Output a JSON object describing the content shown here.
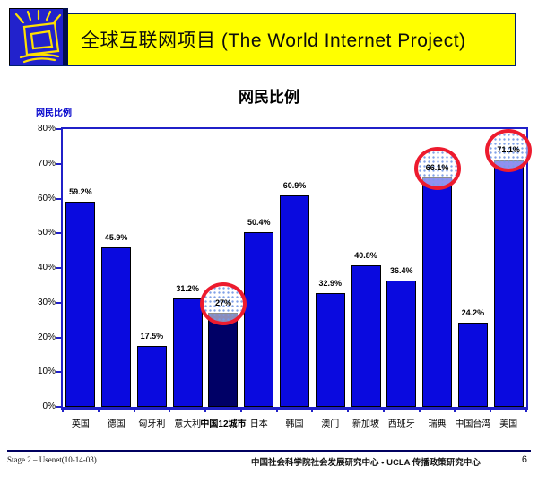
{
  "header": {
    "title": "全球互联网项目 (The World Internet Project)",
    "logo_icon": "computer-monitor-burst-icon",
    "banner_bg": "#FFFF00",
    "banner_border": "#002070",
    "logo_bg": "#2222CC"
  },
  "chart_data": {
    "type": "bar",
    "title": "网民比例",
    "ylabel": "网民比例",
    "xlabel": "",
    "ylim": [
      0,
      80
    ],
    "yticks": [
      "0%",
      "10%",
      "20%",
      "30%",
      "40%",
      "50%",
      "60%",
      "70%",
      "80%"
    ],
    "grid": false,
    "categories": [
      "英国",
      "德国",
      "匈牙利",
      "意大利",
      "中国12城市",
      "日本",
      "韩国",
      "澳门",
      "新加坡",
      "西班牙",
      "瑞典",
      "中国台湾",
      "美国"
    ],
    "values": [
      59.2,
      45.9,
      17.5,
      31.2,
      27,
      50.4,
      60.9,
      32.9,
      40.8,
      36.4,
      66.1,
      24.2,
      71.1
    ],
    "value_labels": [
      "59.2%",
      "45.9%",
      "17.5%",
      "31.2%",
      "27%",
      "50.4%",
      "60.9%",
      "32.9%",
      "40.8%",
      "36.4%",
      "66.1%",
      "24.2%",
      "71.1%"
    ],
    "highlighted_category": "中国12城市",
    "circled_categories": [
      "中国12城市",
      "瑞典",
      "美国"
    ],
    "bar_color": "#0A0ADF",
    "highlighted_bar_color": "#000066",
    "circle_color": "#ED1B2E",
    "axis_color": "#2020C8"
  },
  "footer": {
    "left": "Stage 2 – Usenet(10-14-03)",
    "center": "中国社会科学院社会发展研究中心 • UCLA 传播政策研究中心",
    "page_number": "6"
  }
}
